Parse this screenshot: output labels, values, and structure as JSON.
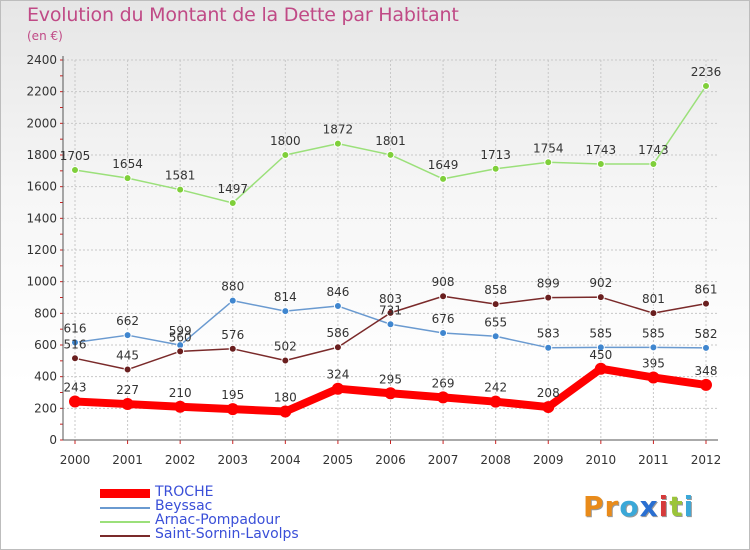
{
  "header": {
    "title": "Evolution du Montant de la Dette par Habitant",
    "unit": "(en €)"
  },
  "logo": {
    "letters": [
      "P",
      "r",
      "o",
      "x",
      "i",
      "t",
      "i"
    ],
    "colors": [
      "#e98b1a",
      "#e98b1a",
      "#3ba8d8",
      "#2a6fd1",
      "#d63a3a",
      "#9bc43a",
      "#3ba8d8"
    ]
  },
  "chart_data": {
    "type": "line",
    "title": "Evolution du Montant de la Dette par Habitant",
    "ylabel": "(en €)",
    "xlabel": "",
    "x": [
      "2000",
      "2001",
      "2002",
      "2003",
      "2004",
      "2005",
      "2006",
      "2007",
      "2008",
      "2009",
      "2010",
      "2011",
      "2012"
    ],
    "ylim": [
      0,
      2400
    ],
    "yticks": [
      "0",
      "200",
      "400",
      "600",
      "800",
      "1000",
      "1200",
      "1400",
      "1600",
      "1800",
      "2000",
      "2200",
      "2400"
    ],
    "grid": true,
    "legend_position": "bottom-left",
    "series": [
      {
        "name": "TROCHE",
        "color": "#ff0000",
        "marker": "#ff0000",
        "thick": true,
        "values": [
          243,
          227,
          210,
          195,
          180,
          324,
          295,
          269,
          242,
          208,
          450,
          395,
          348
        ]
      },
      {
        "name": "Beyssac",
        "color": "#6a9ad0",
        "marker": "#3f86cf",
        "thick": false,
        "values": [
          616,
          662,
          599,
          880,
          814,
          846,
          731,
          676,
          655,
          583,
          585,
          585,
          582
        ]
      },
      {
        "name": "Arnac-Pompadour",
        "color": "#9be07a",
        "marker": "#7fcf3a",
        "thick": false,
        "values": [
          1705,
          1654,
          1581,
          1497,
          1800,
          1872,
          1801,
          1649,
          1713,
          1754,
          1743,
          1743,
          2236
        ]
      },
      {
        "name": "Saint-Sornin-Lavolps",
        "color": "#7a2a2a",
        "marker": "#6a1f1f",
        "thick": false,
        "values": [
          516,
          445,
          560,
          576,
          502,
          586,
          803,
          908,
          858,
          899,
          902,
          801,
          861
        ]
      }
    ]
  }
}
